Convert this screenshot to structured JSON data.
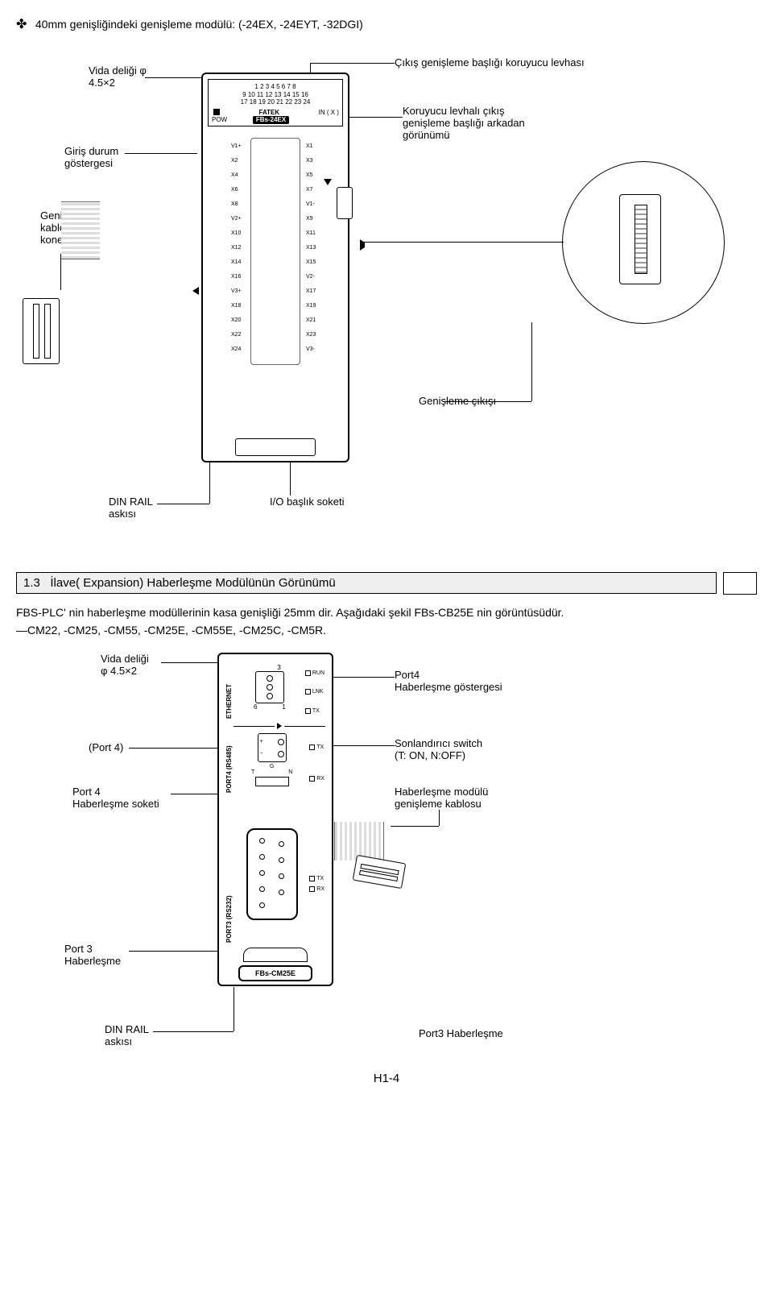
{
  "header": {
    "title": "40mm genişliğindeki genişleme modülü: (-24EX, -24EYT, -32DGI)"
  },
  "fig1": {
    "screw_label_l1": "Vida deliği φ",
    "screw_label_l2": "4.5×2",
    "input_status_l1": "Giriş durum",
    "input_status_l2": "göstergesi",
    "cable_conn_l1": "Genişleme",
    "cable_conn_l2": "kablosu",
    "cable_conn_l3": "konektörü",
    "cover_l1": "Çıkış genişleme başlığı koruyucu levhası",
    "cover2_l1": "Koruyucu levhalı çıkış",
    "cover2_l2": "genişleme başlığı arkadan",
    "cover2_l3": "görünümü",
    "exp_out": "Genişleme çıkışı",
    "din_l1": "DIN RAIL",
    "din_l2": "askısı",
    "io_socket": "I/O başlık soketi",
    "top_row1": "1 2 3 4 5 6 7 8",
    "top_row2": "9 10 11 12 13 14 15 16",
    "top_row3": "17 18 19 20 21 22 23 24",
    "brand": "FATEK",
    "inx": "IN ( X )",
    "pow": "POW",
    "model": "FBs-24EX",
    "pins_left": [
      "V1+",
      "X2",
      "X4",
      "X6",
      "X8",
      "V2+",
      "X10",
      "X12",
      "X14",
      "X16",
      "V3+",
      "X18",
      "X20",
      "X22",
      "X24"
    ],
    "pins_right": [
      "X1",
      "X3",
      "X5",
      "X7",
      "V1-",
      "X9",
      "X11",
      "X13",
      "X15",
      "V2-",
      "X17",
      "X19",
      "X21",
      "X23",
      "V3-"
    ]
  },
  "section": {
    "num": "1.3",
    "title": "İlave( Expansion) Haberleşme Modülünün Görünümü"
  },
  "desc1": "FBS-PLC' nin haberleşme modüllerinin kasa genişliği 25mm dir. Aşağıdaki şekil FBs-CB25E nin görüntüsüdür.",
  "desc2": "—CM22, -CM25, -CM55, -CM25E, -CM55E, -CM25C, -CM5R.",
  "fig2": {
    "screw_l1": "Vida deliği",
    "screw_l2": "φ 4.5×2",
    "port4_paren": "(Port 4)",
    "port4_sock_l1": "Port 4",
    "port4_sock_l2": "Haberleşme soketi",
    "port3_l1": "Port 3",
    "port3_l2": "Haberleşme",
    "eth": "ETHERNET",
    "p4": "PORT4 (RS485)",
    "p3": "PORT3 (RS232)",
    "run": "RUN",
    "lnk": "LNK",
    "tx": "TX",
    "rx": "RX",
    "g": "G",
    "t": "T",
    "n": "N",
    "n3": "3",
    "n6": "6",
    "n1": "1",
    "right_port4_l1": "Port4",
    "right_port4_l2": "Haberleşme göstergesi",
    "right_term_l1": "Sonlandırıcı switch",
    "right_term_l2": "(T: ON, N:OFF)",
    "right_mod_l1": "Haberleşme modülü",
    "right_mod_l2": "genişleme kablosu",
    "model": "FBs-CM25E",
    "din_l1": "DIN RAIL",
    "din_l2": "askısı",
    "port3_ind": "Port3 Haberleşme"
  },
  "footer": "H1-4"
}
